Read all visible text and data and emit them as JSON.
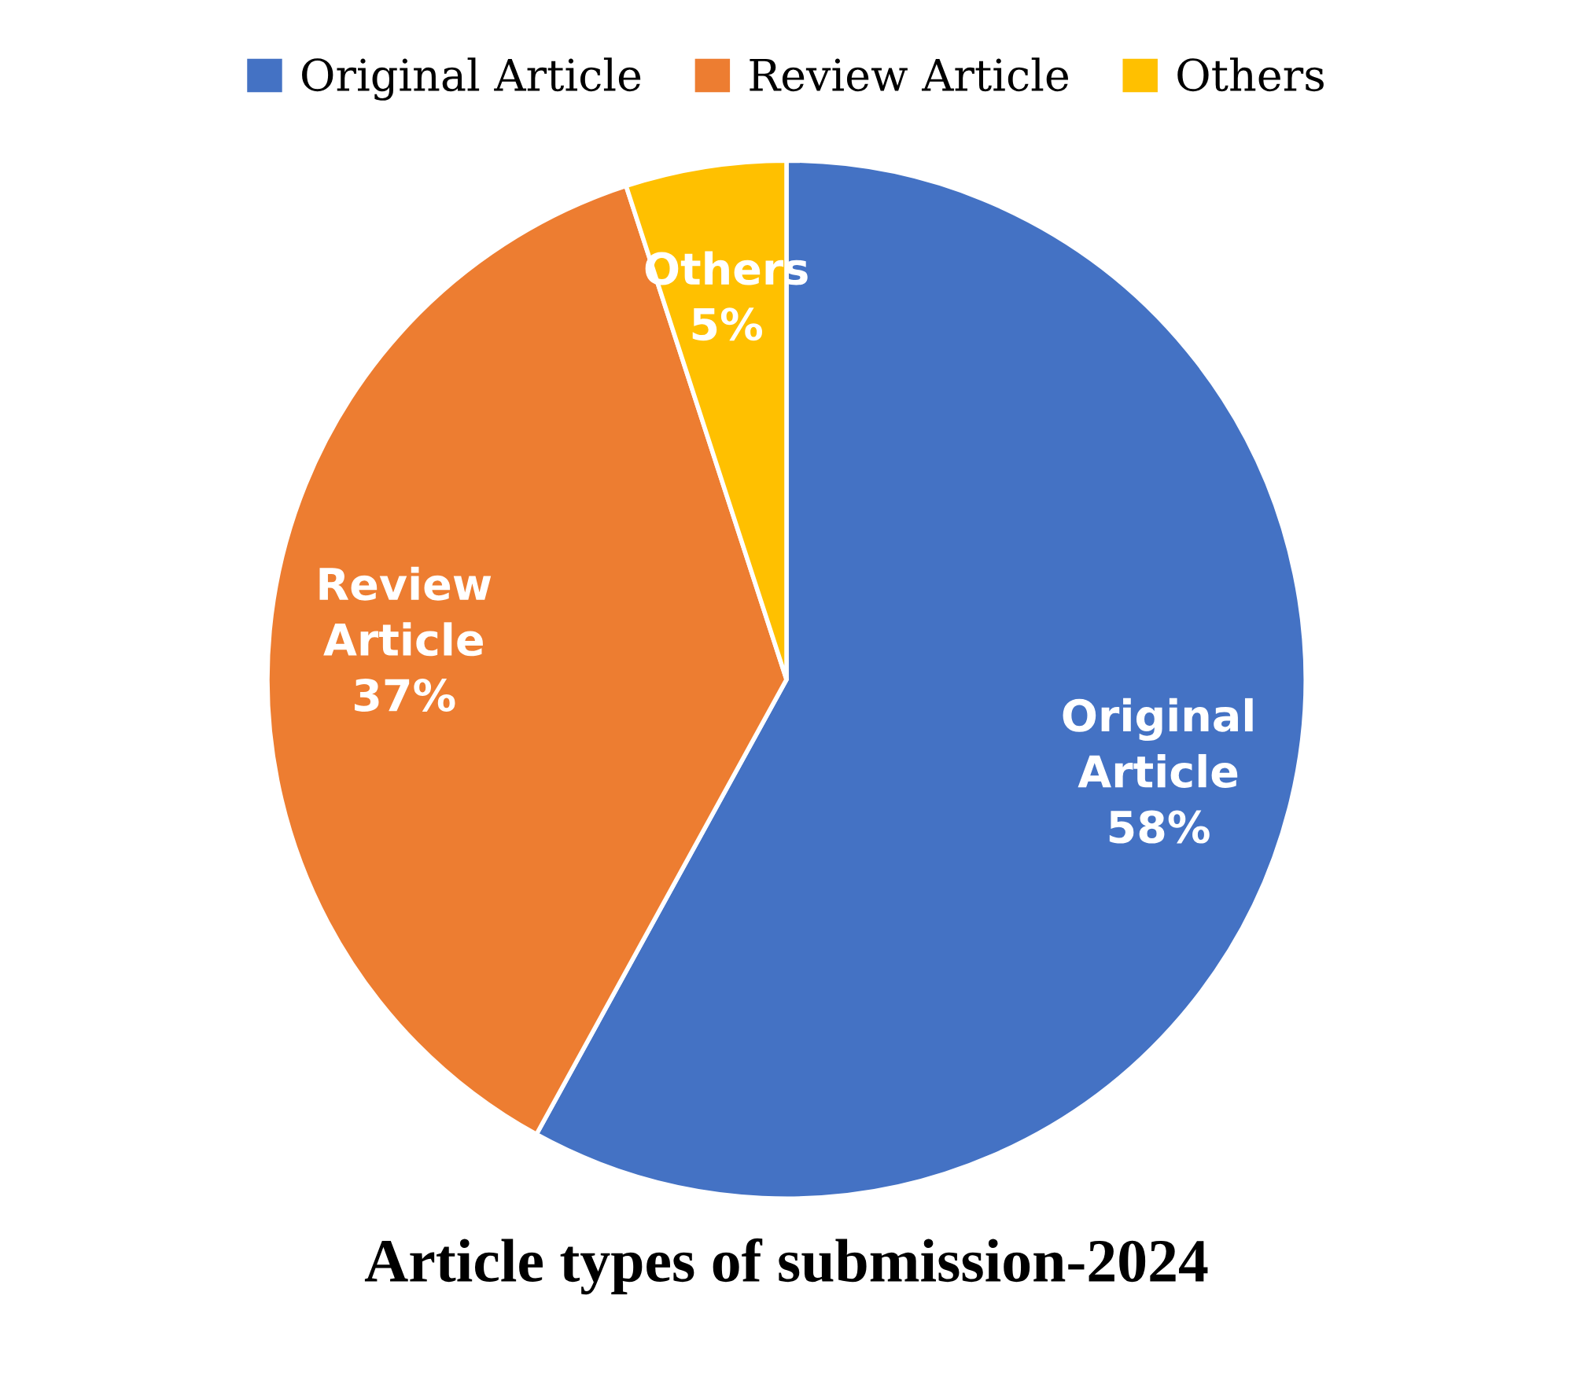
{
  "chart_data": {
    "type": "pie",
    "title": "Article types of submission-2024",
    "categories": [
      "Original Article",
      "Review Article",
      "Others"
    ],
    "values": [
      58,
      37,
      5
    ],
    "colors": [
      "#4472c4",
      "#ed7d31",
      "#ffc000"
    ],
    "value_labels": [
      "Original\nArticle\n58%",
      "Review\nArticle\n37%",
      "Others\n5%"
    ],
    "legend": "top"
  }
}
